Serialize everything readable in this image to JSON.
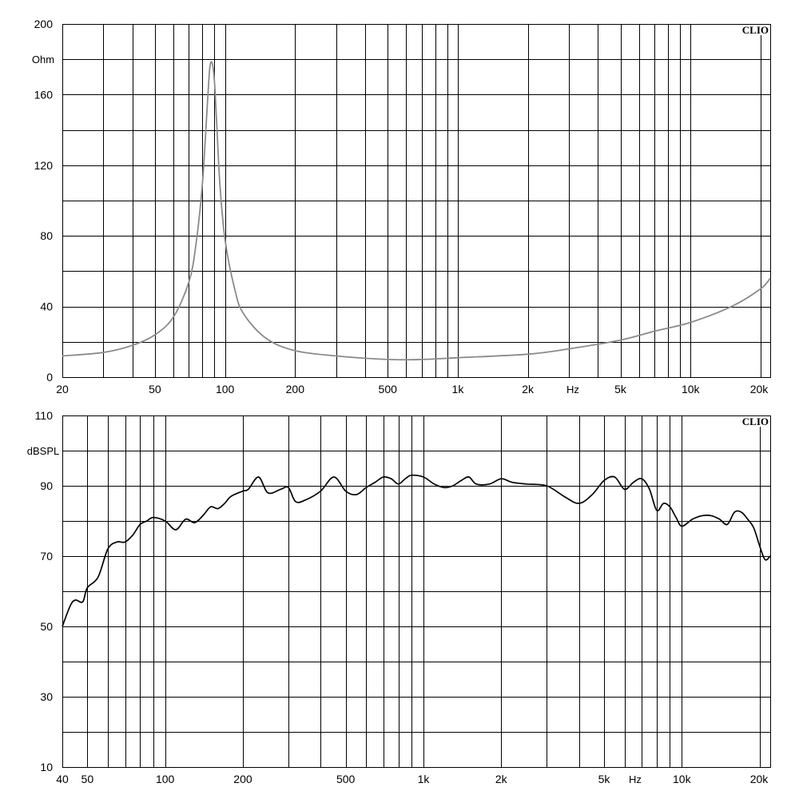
{
  "chart_data": [
    {
      "type": "line",
      "title": "",
      "brand": "CLIO",
      "ylabel": "Ohm",
      "xlabel": "Hz",
      "xscale": "log",
      "xlim": [
        20,
        22000
      ],
      "ylim": [
        0,
        200
      ],
      "ytick_values": [
        0,
        40,
        80,
        120,
        160,
        200
      ],
      "ytick_labels": [
        "0",
        "40",
        "80",
        "120",
        "160",
        "200"
      ],
      "xtick_values": [
        20,
        50,
        100,
        200,
        500,
        1000,
        2000,
        5000,
        10000,
        20000
      ],
      "xtick_labels": [
        "20",
        "50",
        "100",
        "200",
        "500",
        "1k",
        "2k",
        "5k",
        "10k",
        "20k"
      ],
      "grid": true,
      "series": [
        {
          "color": "#8a8a8a",
          "x": [
            20,
            30,
            40,
            50,
            60,
            70,
            75,
            80,
            84,
            86,
            88,
            90,
            92,
            95,
            100,
            110,
            120,
            150,
            200,
            300,
            500,
            700,
            1000,
            2000,
            3000,
            5000,
            7000,
            10000,
            15000,
            20000,
            22000
          ],
          "y": [
            12,
            14,
            18,
            24,
            34,
            54,
            75,
            110,
            155,
            175,
            178,
            168,
            145,
            110,
            78,
            50,
            36,
            22,
            15,
            12,
            10,
            10,
            11,
            13,
            16,
            21,
            26,
            31,
            40,
            50,
            56
          ]
        }
      ]
    },
    {
      "type": "line",
      "title": "",
      "brand": "CLIO",
      "ylabel": "dBSPL",
      "xlabel": "Hz",
      "xscale": "log",
      "xlim": [
        40,
        22000
      ],
      "ylim": [
        10,
        110
      ],
      "ytick_values": [
        10,
        30,
        50,
        70,
        90,
        110
      ],
      "ytick_labels": [
        "10",
        "30",
        "50",
        "70",
        "90",
        "110"
      ],
      "xtick_values": [
        40,
        50,
        100,
        200,
        500,
        1000,
        2000,
        5000,
        10000,
        20000
      ],
      "xtick_labels": [
        "40",
        "50",
        "100",
        "200",
        "500",
        "1k",
        "2k",
        "5k",
        "10k",
        "20k"
      ],
      "grid": true,
      "series": [
        {
          "color": "#000000",
          "x": [
            40,
            43,
            45,
            48,
            50,
            55,
            60,
            65,
            70,
            75,
            80,
            85,
            90,
            100,
            110,
            120,
            130,
            140,
            150,
            160,
            170,
            180,
            200,
            210,
            230,
            250,
            280,
            300,
            320,
            350,
            400,
            450,
            500,
            550,
            600,
            650,
            700,
            750,
            800,
            850,
            900,
            1000,
            1100,
            1200,
            1300,
            1400,
            1500,
            1600,
            1800,
            2000,
            2200,
            2500,
            3000,
            3500,
            4000,
            4500,
            5000,
            5500,
            6000,
            6500,
            7000,
            7500,
            8000,
            8500,
            9000,
            9500,
            10000,
            11000,
            12000,
            13000,
            14000,
            15000,
            16000,
            17000,
            18000,
            19000,
            20000,
            21000,
            22000
          ],
          "y": [
            50,
            56,
            57.5,
            57,
            61,
            64,
            72,
            74,
            74,
            76,
            79,
            80,
            81,
            80,
            77.5,
            80.5,
            79.5,
            81.5,
            84,
            83.5,
            85,
            87,
            88.5,
            89,
            92.5,
            88,
            89,
            89.5,
            85.5,
            86,
            88.5,
            92.5,
            88.5,
            87.5,
            89.5,
            91,
            92.5,
            92,
            90.5,
            92,
            93,
            92.5,
            90.5,
            89.5,
            90,
            91.5,
            92.5,
            90.5,
            90.5,
            92,
            91,
            90.5,
            90,
            87,
            85,
            87.5,
            91.5,
            92.5,
            89,
            91,
            92,
            89,
            83,
            85,
            84,
            81,
            78.5,
            80.5,
            81.5,
            81.5,
            80.5,
            79,
            82.5,
            82.5,
            80.5,
            78,
            73,
            69,
            70
          ]
        }
      ]
    }
  ]
}
